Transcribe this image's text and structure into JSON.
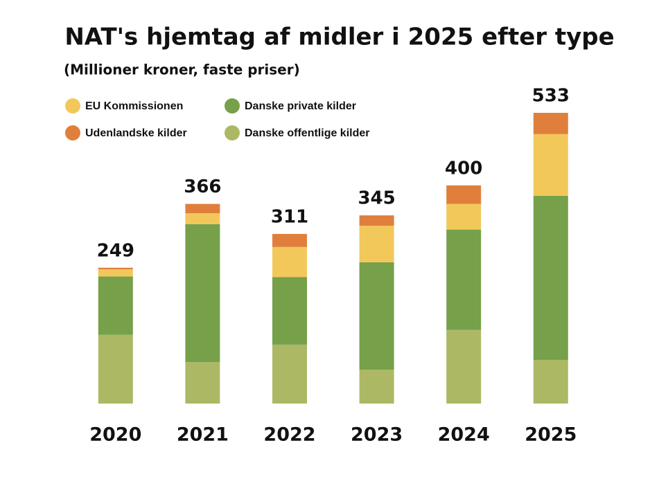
{
  "chart_data": {
    "type": "stacked_bar",
    "title": "NAT's hjemtag af midler i 2025 efter type",
    "subtitle": "(Millioner kroner, faste priser)",
    "categories": [
      "2020",
      "2021",
      "2022",
      "2023",
      "2024",
      "2025"
    ],
    "series": [
      {
        "name": "Danske offentlige kilder",
        "color": "#adb865",
        "values": [
          126,
          76,
          108,
          62,
          135,
          80
        ]
      },
      {
        "name": "Danske private kilder",
        "color": "#76a04a",
        "values": [
          107,
          253,
          124,
          197,
          184,
          301
        ]
      },
      {
        "name": "EU Kommissionen",
        "color": "#f2c85b",
        "values": [
          13,
          20,
          55,
          67,
          47,
          113
        ]
      },
      {
        "name": "Udenlandske kilder",
        "color": "#e07f3c",
        "values": [
          3,
          17,
          24,
          19,
          34,
          39
        ]
      }
    ],
    "totals": [
      249,
      366,
      311,
      345,
      400,
      533
    ]
  }
}
